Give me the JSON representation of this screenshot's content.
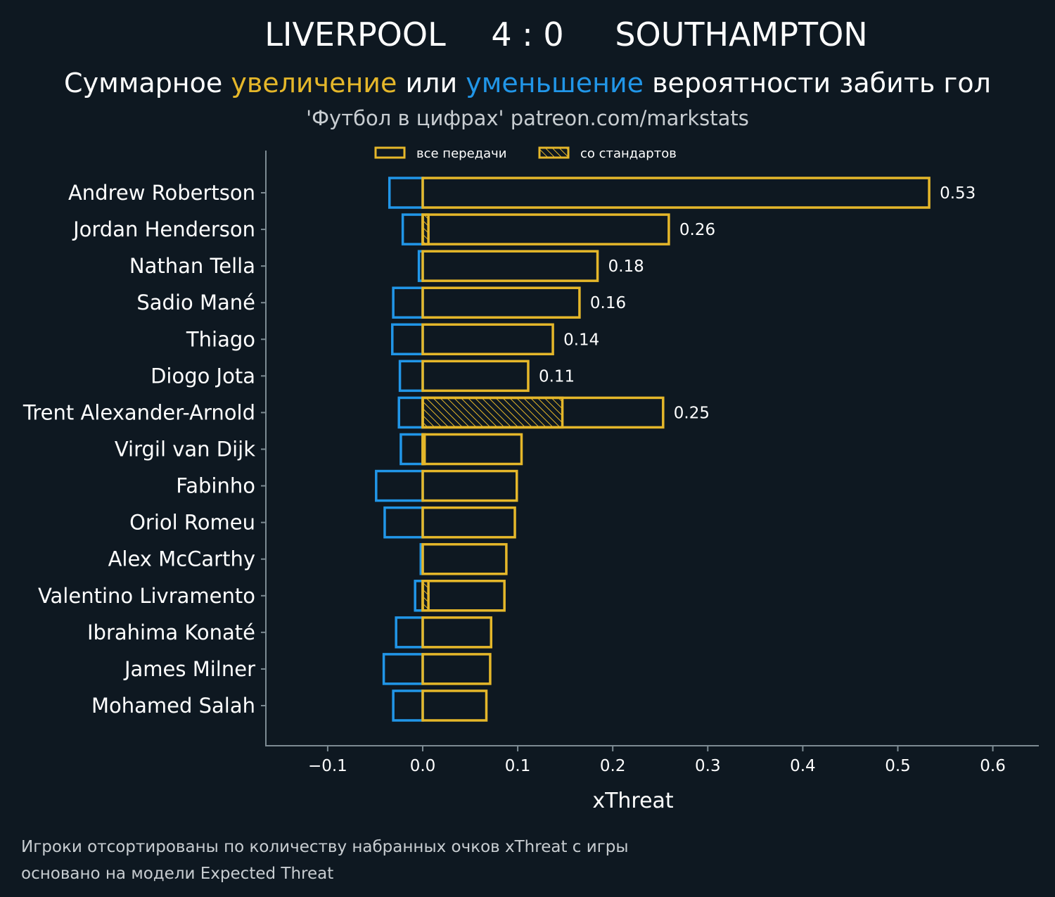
{
  "header": {
    "team_home": "LIVERPOOL",
    "score": "4 : 0",
    "team_away": "SOUTHAMPTON",
    "subtitle_pre": "Суммарное ",
    "subtitle_increase": "увеличение",
    "subtitle_mid": " или ",
    "subtitle_decrease": "уменьшение",
    "subtitle_post": " вероятности забить гол",
    "credit": "'Футбол в цифрах' patreon.com/markstats"
  },
  "footer": {
    "note_line1": "Игроки отсортированы по количеству набранных очков xThreat с игры",
    "note_line2": "основано на модели Expected Threat"
  },
  "colors": {
    "background": "#0e1821",
    "increase": "#e5b72a",
    "decrease": "#2196e8",
    "axis": "#7d8b93",
    "text": "#ffffff",
    "muted_text": "#c8cdd1"
  },
  "chart_data": {
    "type": "bar",
    "orientation": "horizontal",
    "xlabel": "xThreat",
    "ylabel": "",
    "xlim": [
      -0.165,
      0.65
    ],
    "xticks": [
      -0.1,
      0.0,
      0.1,
      0.2,
      0.3,
      0.4,
      0.5,
      0.6
    ],
    "xtick_labels": [
      "−0.1",
      "0.0",
      "0.1",
      "0.2",
      "0.3",
      "0.4",
      "0.5",
      "0.6"
    ],
    "grid": false,
    "legend_placement": "top-center",
    "legend": [
      {
        "label": "все передачи",
        "style": "outline"
      },
      {
        "label": "со стандартов",
        "style": "hatched"
      }
    ],
    "categories": [
      "Andrew Robertson",
      "Jordan Henderson",
      "Nathan Tella",
      "Sadio Mané",
      "Thiago",
      "Diogo Jota",
      "Trent Alexander-Arnold",
      "Virgil van Dijk",
      "Fabinho",
      "Oriol Romeu",
      "Alex McCarthy",
      "Valentino Livramento",
      "Ibrahima Konaté",
      "James Milner",
      "Mohamed Salah"
    ],
    "series": [
      {
        "values": [
          0.533,
          0.259,
          0.184,
          0.165,
          0.137,
          0.111,
          0.253,
          0.104,
          0.099,
          0.097,
          0.088,
          0.086,
          0.072,
          0.071,
          0.067
        ]
      },
      {
        "values": [
          0.0,
          0.006,
          0.0,
          0.0,
          0.0,
          0.0,
          0.147,
          0.002,
          0.0,
          0.0,
          0.0,
          0.006,
          0.0,
          0.0,
          0.0
        ]
      },
      {
        "values": [
          -0.035,
          -0.021,
          -0.004,
          -0.031,
          -0.032,
          -0.024,
          -0.025,
          -0.023,
          -0.049,
          -0.04,
          -0.002,
          -0.008,
          -0.028,
          -0.041,
          -0.031
        ]
      }
    ],
    "data_labels": [
      "0.53",
      "0.26",
      "0.18",
      "0.16",
      "0.14",
      "0.11",
      "0.25",
      "",
      "",
      "",
      "",
      "",
      "",
      "",
      ""
    ]
  }
}
